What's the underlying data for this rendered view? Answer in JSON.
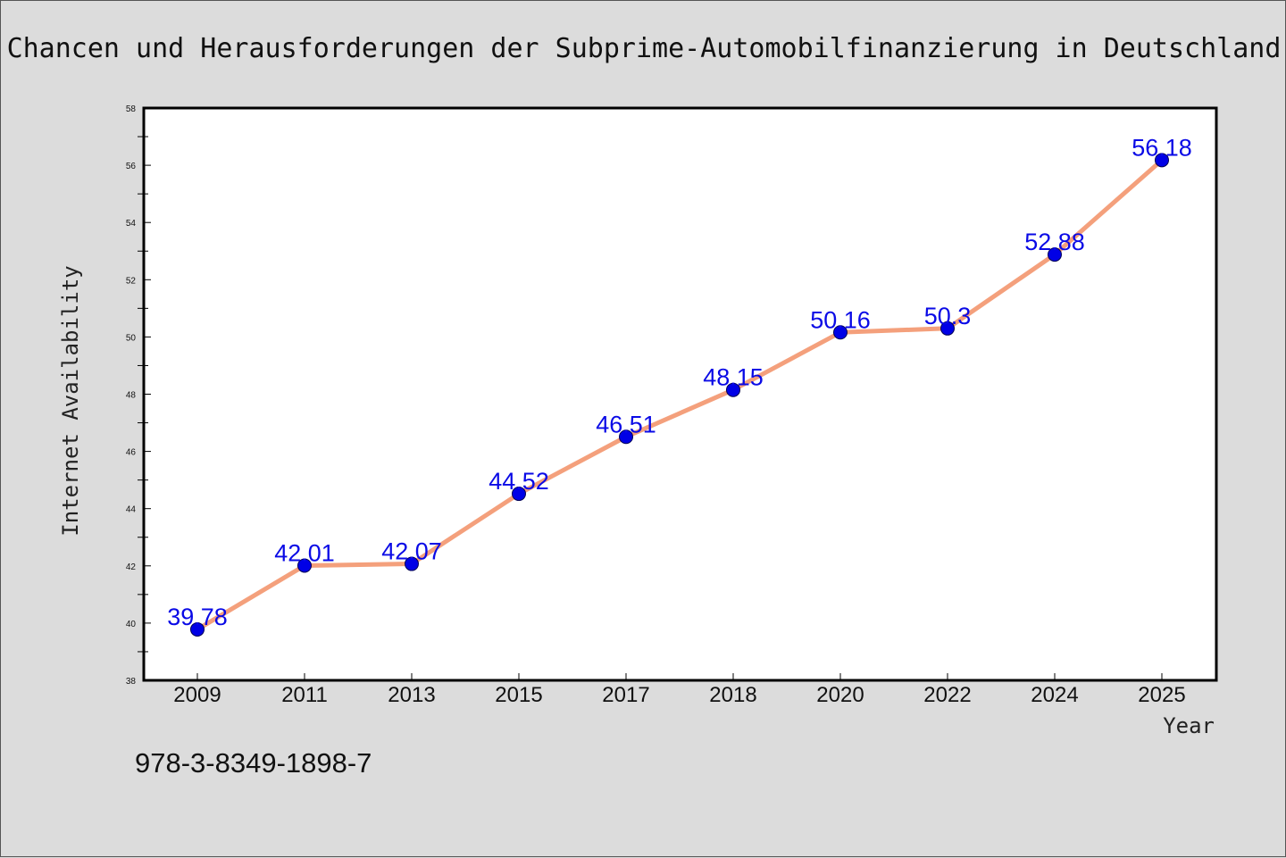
{
  "footnote": "978-3-8349-1898-7",
  "chart_data": {
    "type": "line",
    "title": "Chancen und Herausforderungen der Subprime-Automobilfinanzierung in Deutschland",
    "xlabel": "Year",
    "ylabel": "Internet Availability",
    "categories": [
      "2009",
      "2011",
      "2013",
      "2015",
      "2017",
      "2018",
      "2020",
      "2022",
      "2024",
      "2025"
    ],
    "values": [
      39.78,
      42.01,
      42.07,
      44.52,
      46.51,
      48.15,
      50.16,
      50.3,
      52.88,
      56.18
    ],
    "data_labels": [
      "39.78",
      "42.01",
      "42.07",
      "44.52",
      "46.51",
      "48.15",
      "50.16",
      "50.3",
      "52.88",
      "56.18"
    ],
    "ylim": [
      38,
      58
    ],
    "yticks": [
      "38",
      "40",
      "42",
      "44",
      "46",
      "48",
      "50",
      "52",
      "54",
      "56",
      "58"
    ],
    "grid": false,
    "line_color": "#f4a07c",
    "marker_color": "#0000e6",
    "label_color": "#0a0ae6"
  }
}
